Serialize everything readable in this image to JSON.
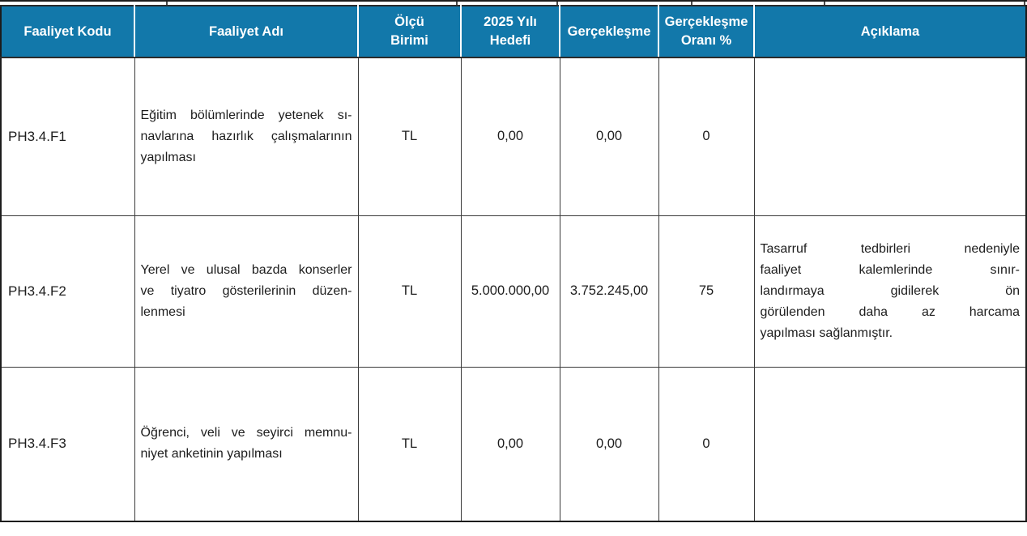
{
  "table": {
    "headers": [
      "Faaliyet Kodu",
      "Faaliyet Adı",
      "Ölçü\nBirimi",
      "2025 Yılı\nHedefi",
      "Gerçekleşme",
      "Gerçekleşme\nOranı %",
      "Açıklama"
    ],
    "rows": [
      {
        "code": "PH3.4.F1",
        "name": "Eğitim bölümlerinde yetenek sı-\nnavlarına hazırlık çalışmalarının\nyapılması",
        "unit": "TL",
        "target": "0,00",
        "actual": "0,00",
        "ratio": "0",
        "note": ""
      },
      {
        "code": "PH3.4.F2",
        "name": "Yerel ve ulusal bazda konserler\nve tiyatro gösterilerinin düzen-\nlenmesi",
        "unit": "TL",
        "target": "5.000.000,00",
        "actual": "3.752.245,00",
        "ratio": "75",
        "note": "Tasarruf tedbirleri nedeniyle\nfaaliyet kalemlerinde sınır-\nlandırmaya gidilerek ön\ngörülenden daha az harcama\nyapılması sağlanmıştır."
      },
      {
        "code": "PH3.4.F3",
        "name": "Öğrenci, veli ve seyirci memnu-\nniyet anketinin yapılması",
        "unit": "TL",
        "target": "0,00",
        "actual": "0,00",
        "ratio": "0",
        "note": ""
      }
    ]
  },
  "colors": {
    "header_bg": "#1278aa",
    "header_text": "#ffffff",
    "outer_border": "#1c1c1c",
    "inner_border": "#3a3a3a"
  }
}
